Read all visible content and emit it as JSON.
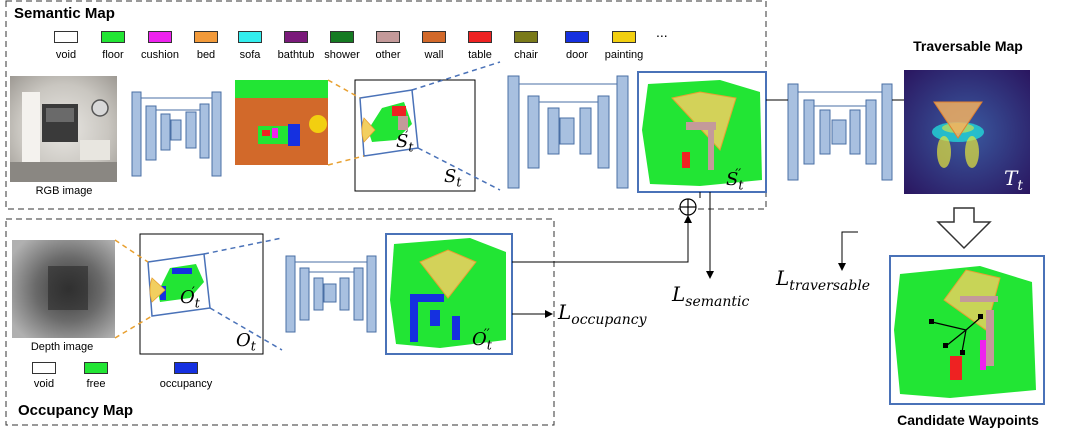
{
  "semantic_map": {
    "title": "Semantic Map",
    "legend": [
      {
        "label": "void",
        "color": "#ffffff"
      },
      {
        "label": "floor",
        "color": "#22e534"
      },
      {
        "label": "cushion",
        "color": "#ee22ee"
      },
      {
        "label": "bed",
        "color": "#f29a3a"
      },
      {
        "label": "sofa",
        "color": "#33eeee"
      },
      {
        "label": "bathtub",
        "color": "#7a1a7a"
      },
      {
        "label": "shower",
        "color": "#157a22"
      },
      {
        "label": "other",
        "color": "#c49a9a"
      },
      {
        "label": "wall",
        "color": "#d2692a"
      },
      {
        "label": "table",
        "color": "#ee2222"
      },
      {
        "label": "chair",
        "color": "#7a7a1a"
      },
      {
        "label": "door",
        "color": "#1530e0"
      },
      {
        "label": "painting",
        "color": "#f2cf10"
      }
    ],
    "ellipsis": "...",
    "rgb_caption": "RGB image",
    "s_t": {
      "base": "S",
      "sub": "t"
    },
    "s_t_prime": {
      "base": "S",
      "sub": "t",
      "sup": "′"
    },
    "s_t_dprime": {
      "base": "S",
      "sub": "t",
      "sup": "′′"
    }
  },
  "occupancy_map": {
    "title": "Occupancy Map",
    "legend": [
      {
        "label": "void",
        "color": "#ffffff"
      },
      {
        "label": "free",
        "color": "#22e534"
      },
      {
        "label": "occupancy",
        "color": "#1530e0"
      }
    ],
    "depth_caption": "Depth image",
    "o_t": {
      "base": "O",
      "sub": "t"
    },
    "o_t_prime": {
      "base": "O",
      "sub": "t",
      "sup": "′"
    },
    "o_t_dprime": {
      "base": "O",
      "sub": "t",
      "sup": "′′"
    }
  },
  "losses": {
    "occupancy": {
      "base": "L",
      "sub": "occupancy"
    },
    "semantic": {
      "base": "L",
      "sub": "semantic"
    },
    "traversable": {
      "base": "L",
      "sub": "traversable"
    }
  },
  "traversable_map": {
    "title": "Traversable Map",
    "t_t": {
      "base": "T",
      "sub": "t"
    }
  },
  "waypoints": {
    "title": "Candidate Waypoints"
  },
  "colors": {
    "encoder_fill": "#a8c0e0",
    "encoder_stroke": "#4a6fa5",
    "frame_blue": "#4a72b8",
    "dashed_orange": "#e8a030",
    "dashed_blue": "#4a72b8",
    "floor_green": "#22e534",
    "fov_fill": "#f2cf60"
  }
}
